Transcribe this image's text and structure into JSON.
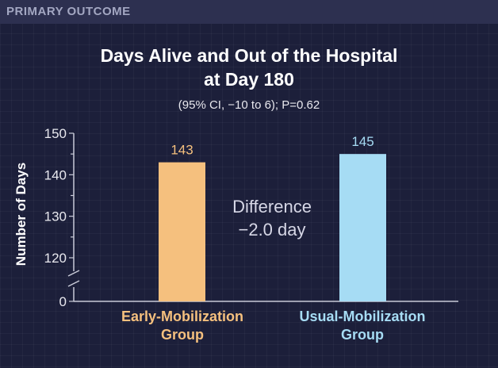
{
  "header": {
    "label": "PRIMARY OUTCOME"
  },
  "annotation": {
    "line1": "Difference",
    "line2": "−2.0 day"
  },
  "chart_data": {
    "type": "bar",
    "title_line1": "Days Alive and Out of the Hospital",
    "title_line2": "at Day 180",
    "subtitle": "(95% CI, −10 to 6); P=0.62",
    "ylabel": "Number of Days",
    "xlabel": "",
    "ylim": [
      115,
      150
    ],
    "axis_break": true,
    "yticks": [
      {
        "value": 150,
        "label": "150"
      },
      {
        "value": 140,
        "label": "140"
      },
      {
        "value": 130,
        "label": "130"
      },
      {
        "value": 120,
        "label": "120"
      }
    ],
    "baseline_label": "0",
    "categories": [
      {
        "line1": "Early-Mobilization",
        "line2": "Group"
      },
      {
        "line1": "Usual-Mobilization",
        "line2": "Group"
      }
    ],
    "values": [
      143,
      145
    ],
    "value_labels": [
      "143",
      "145"
    ],
    "colors": [
      "#f5c07e",
      "#a6dcf4"
    ],
    "label_colors": [
      "#f5c07e",
      "#a6dcf4"
    ],
    "text_color": "#ffffff",
    "axis_color": "#c8cad8"
  }
}
